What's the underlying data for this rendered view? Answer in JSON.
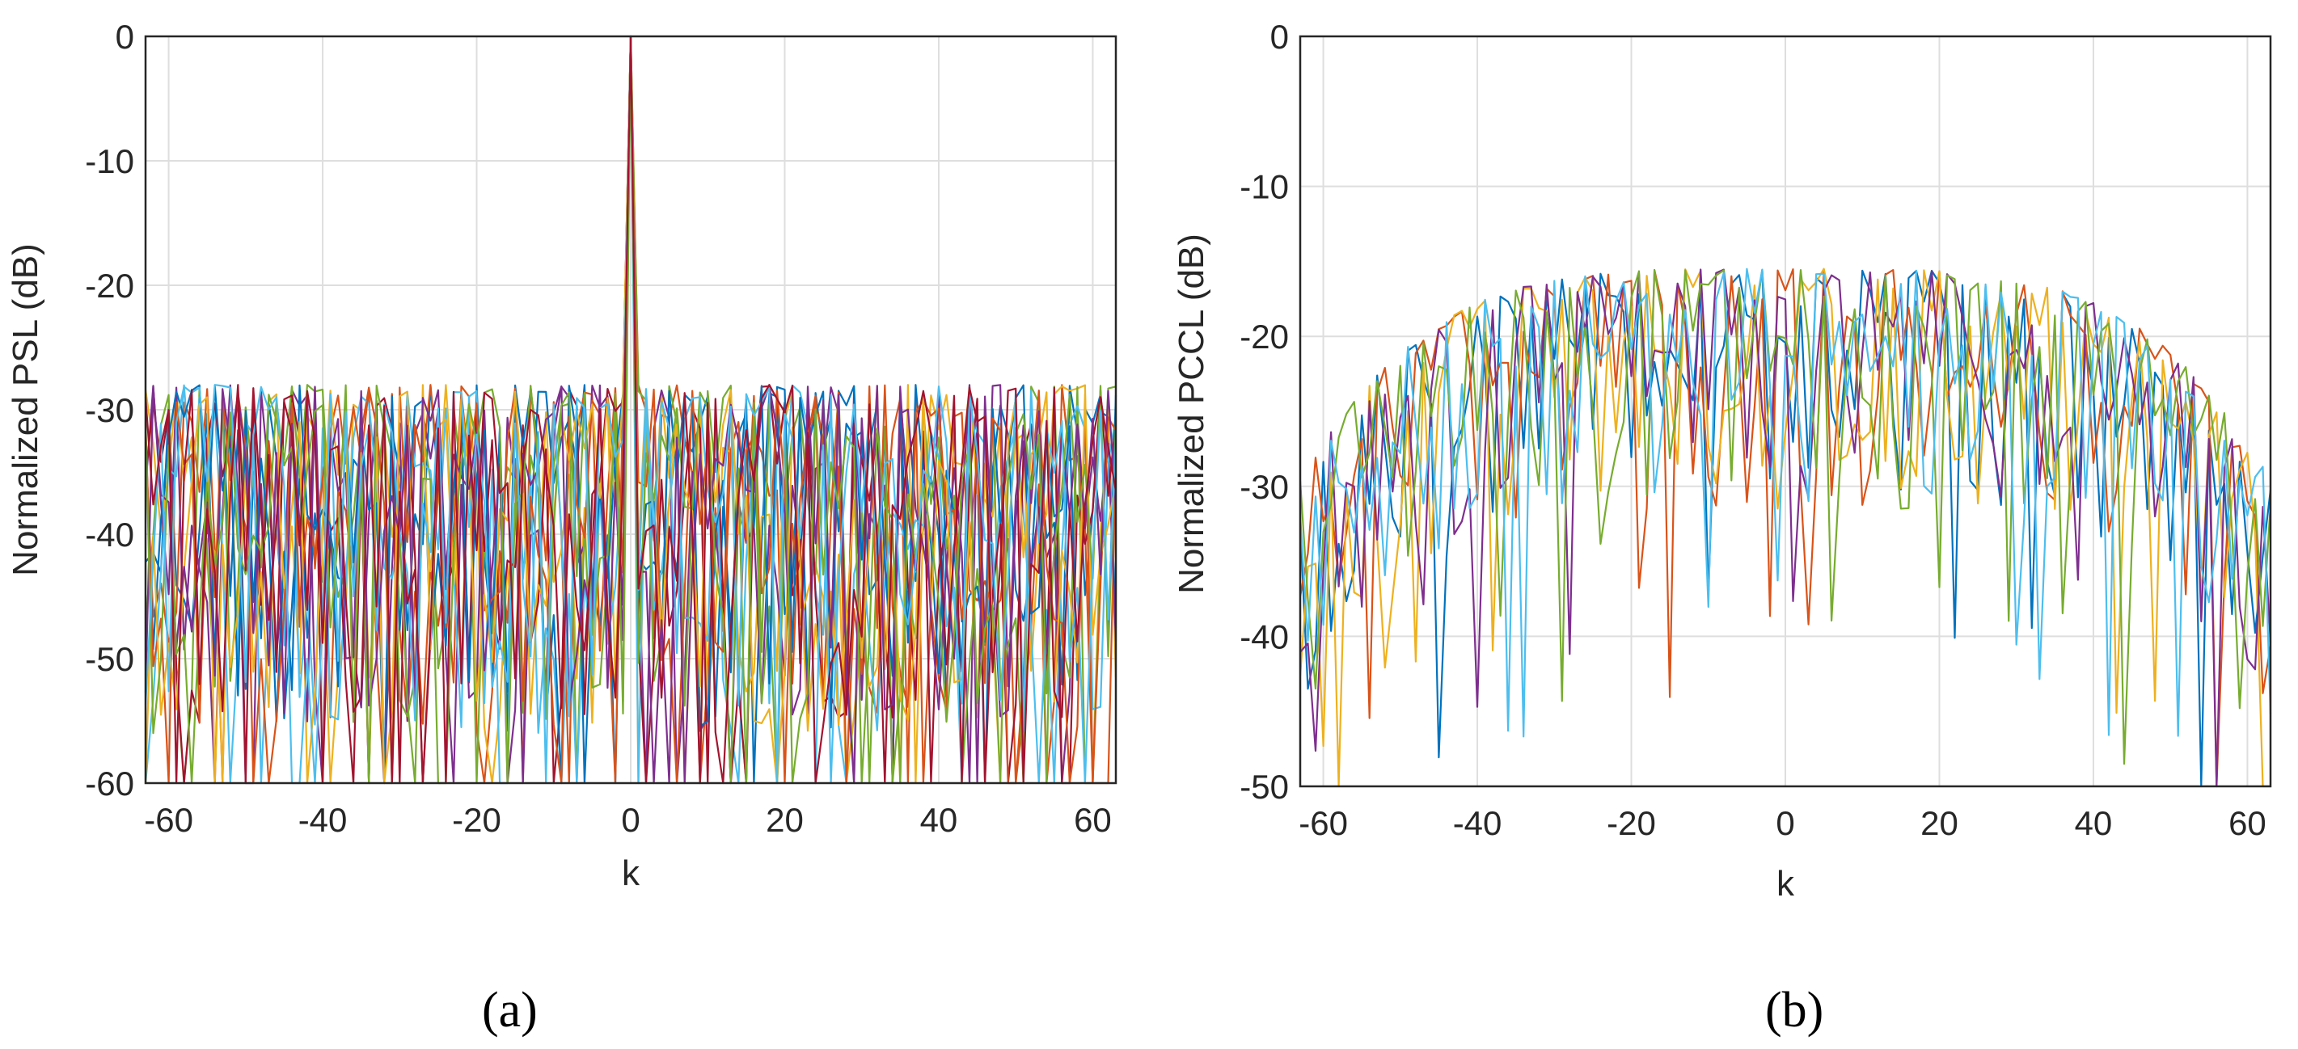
{
  "chart_data": [
    {
      "type": "line",
      "panel_label": "(a)",
      "xlabel": "k",
      "ylabel": "Normalized PSL (dB)",
      "xlim": [
        -63,
        63
      ],
      "ylim": [
        -60,
        0
      ],
      "xticks": [
        "-60",
        "-40",
        "-20",
        "0",
        "20",
        "40",
        "60"
      ],
      "xtick_values": [
        -60,
        -40,
        -20,
        0,
        20,
        40,
        60
      ],
      "yticks": [
        "0",
        "-10",
        "-20",
        "-30",
        "-40",
        "-50",
        "-60"
      ],
      "ytick_values": [
        0,
        -10,
        -20,
        -30,
        -40,
        -50,
        -60
      ],
      "grid": true,
      "series_count": 14,
      "peak": {
        "k": 0,
        "value": 0
      },
      "sidelobe_envelope": {
        "upper": -27,
        "lower": -60
      },
      "colors": [
        "#0072BD",
        "#D95319",
        "#EDB120",
        "#7E2F8E",
        "#77AC30",
        "#4DBEEE",
        "#A2142F"
      ]
    },
    {
      "type": "line",
      "panel_label": "(b)",
      "xlabel": "k",
      "ylabel": "Normalized PCCL (dB)",
      "xlim": [
        -63,
        63
      ],
      "ylim": [
        -50,
        0
      ],
      "xticks": [
        "-60",
        "-40",
        "-20",
        "0",
        "20",
        "40",
        "60"
      ],
      "xtick_values": [
        -60,
        -40,
        -20,
        0,
        20,
        40,
        60
      ],
      "yticks": [
        "0",
        "-10",
        "-20",
        "-30",
        "-40",
        "-50"
      ],
      "ytick_values": [
        0,
        -10,
        -20,
        -30,
        -40,
        -50
      ],
      "grid": true,
      "series_count": 6,
      "envelope": {
        "center_max": -15.5,
        "edge_max": -30,
        "lower": -50
      },
      "colors": [
        "#0072BD",
        "#D95319",
        "#EDB120",
        "#7E2F8E",
        "#77AC30",
        "#4DBEEE",
        "#A2142F"
      ]
    }
  ]
}
